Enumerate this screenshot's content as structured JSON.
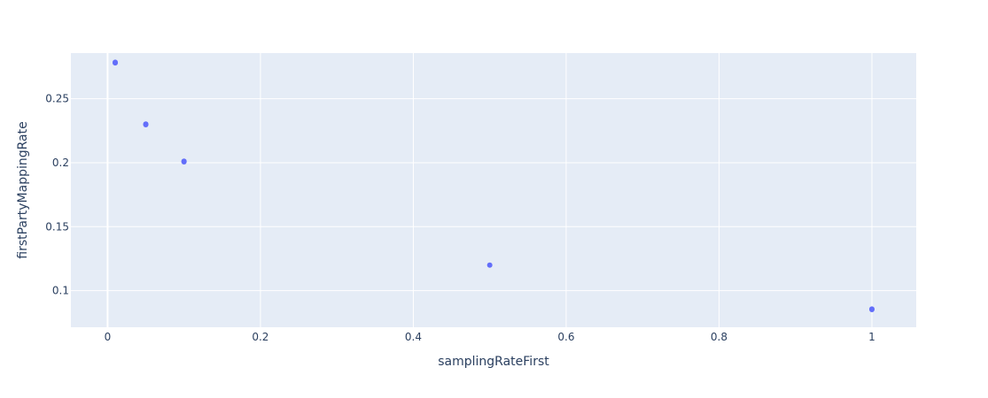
{
  "chart_data": {
    "type": "scatter",
    "title": "",
    "xlabel": "samplingRateFirst",
    "ylabel": "firstPartyMappingRate",
    "xlim": [
      -0.048,
      1.058
    ],
    "ylim": [
      0.0714,
      0.2857
    ],
    "x_ticks": [
      0,
      0.2,
      0.4,
      0.6,
      0.8,
      1
    ],
    "x_tick_labels": [
      "0",
      "0.2",
      "0.4",
      "0.6",
      "0.8",
      "1"
    ],
    "y_ticks": [
      0.1,
      0.15,
      0.2,
      0.25
    ],
    "y_tick_labels": [
      "0.1",
      "0.15",
      "0.2",
      "0.25"
    ],
    "grid": true,
    "legend": "none",
    "series": [
      {
        "color": "#636efa",
        "points": [
          {
            "x": 0.01,
            "y": 0.2785
          },
          {
            "x": 0.01,
            "y": 0.278
          },
          {
            "x": 0.05,
            "y": 0.2302
          },
          {
            "x": 0.05,
            "y": 0.2297
          },
          {
            "x": 0.1,
            "y": 0.2012
          },
          {
            "x": 0.1,
            "y": 0.2007
          },
          {
            "x": 0.5,
            "y": 0.12
          },
          {
            "x": 1,
            "y": 0.0857
          },
          {
            "x": 1,
            "y": 0.0852
          }
        ]
      }
    ],
    "plot_bg": "#e5ecf6",
    "grid_color": "#ffffff",
    "text_color": "#2a3f5f"
  }
}
